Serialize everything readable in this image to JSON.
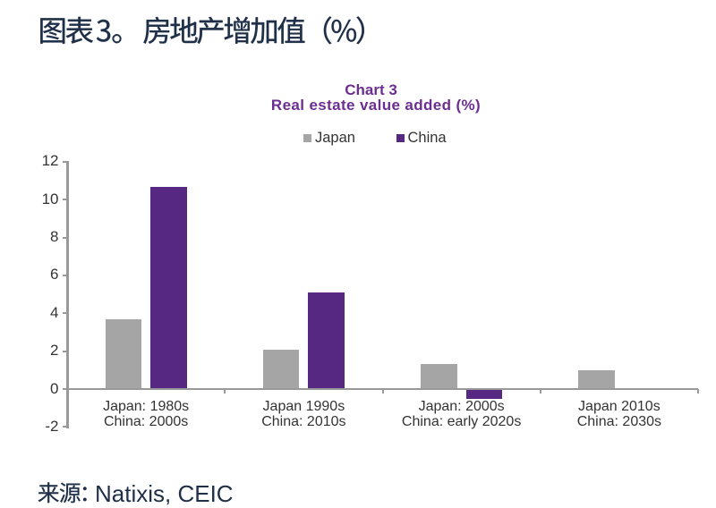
{
  "page": {
    "heading": "图表3。 房地产增加值（%）",
    "source_label": "来源：",
    "source_value": "Natixis, CEIC"
  },
  "chart_data": {
    "type": "bar",
    "title": "Chart 3",
    "subtitle": "Real estate value added (%)",
    "categories": [
      "Japan: 1980s\nChina: 2000s",
      "Japan 1990s\nChina: 2010s",
      "Japan: 2000s\nChina: early 2020s",
      "Japan 2010s\nChina: 2030s"
    ],
    "series": [
      {
        "name": "Japan",
        "color": "#a5a5a5",
        "values": [
          3.7,
          2.1,
          1.3,
          1.0
        ]
      },
      {
        "name": "China",
        "color": "#572882",
        "values": [
          10.7,
          5.1,
          -0.5,
          null
        ]
      }
    ],
    "ylim": [
      -2,
      12
    ],
    "ytick_step": 2,
    "grid": false,
    "legend_position": "top",
    "colors": {
      "chart_title": "#6b2e91",
      "heading_text": "#1e2f47",
      "axis_line": "#999999",
      "axis_text": "#333333",
      "background": "#ffffff"
    }
  }
}
